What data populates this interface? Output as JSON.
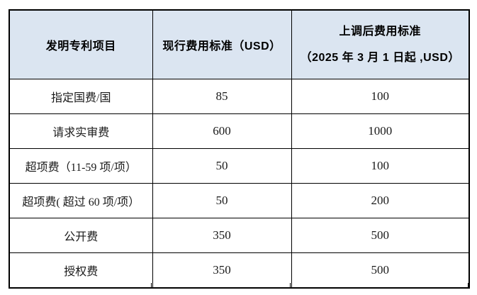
{
  "table": {
    "columns": [
      {
        "key": "item",
        "label": "发明专利项目"
      },
      {
        "key": "current",
        "label": "现行费用标准（USD）"
      },
      {
        "key": "new",
        "label_line1": "上调后费用标准",
        "label_line2": "（2025 年 3 月 1 日起 ,USD）"
      }
    ],
    "rows": [
      {
        "item": "指定国费/国",
        "current": "85",
        "new": "100"
      },
      {
        "item": "请求实审费",
        "current": "600",
        "new": "1000"
      },
      {
        "item": "超项费（11-59 项/项）",
        "current": "50",
        "new": "100"
      },
      {
        "item": "超项费( 超过 60 项/项）",
        "current": "50",
        "new": "200"
      },
      {
        "item": "公开费",
        "current": "350",
        "new": "500"
      },
      {
        "item": "授权费",
        "current": "350",
        "new": "500"
      }
    ],
    "colors": {
      "header_background": "#dbe5f1",
      "border": "#000000",
      "body_text": "#1a1a1a",
      "page_background": "#ffffff"
    }
  }
}
